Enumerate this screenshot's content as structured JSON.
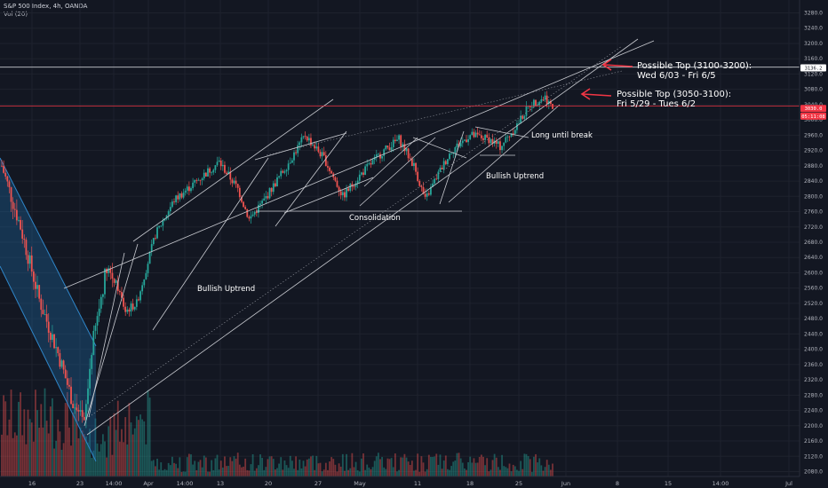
{
  "header": {
    "symbol_line": "S&P 500 Index, 4h, OANDA",
    "volume_line": "Vol (20)"
  },
  "colors": {
    "background": "#131722",
    "up_candle": "#26a69a",
    "down_candle": "#ef5350",
    "annotation": "#ffffff",
    "arrow": "#f23645",
    "downtrend_channel_fill": "#1e6aa6"
  },
  "chart_data": {
    "type": "candlestick",
    "y_axis": {
      "min": 2080,
      "max": 3280,
      "tick_labels": [
        "3280.0",
        "3240.0",
        "3200.0",
        "3160.0",
        "3120.0",
        "3080.0",
        "3040.0",
        "3000.0",
        "2960.0",
        "2920.0",
        "2880.0",
        "2840.0",
        "2800.0",
        "2760.0",
        "2720.0",
        "2680.0",
        "2640.0",
        "2600.0",
        "2560.0",
        "2520.0",
        "2480.0",
        "2440.0",
        "2400.0",
        "2360.0",
        "2320.0",
        "2280.0",
        "2240.0",
        "2200.0",
        "2160.0",
        "2120.0",
        "2080.0"
      ],
      "price_tags": [
        {
          "label": "3136.2",
          "value": 3136.2,
          "color": "#d1d4dc"
        },
        {
          "label": "3030.0",
          "value": 3030.0,
          "color": "#f23645"
        },
        {
          "label": "05:11:08",
          "value": 3010.0,
          "color": "#f23645"
        }
      ]
    },
    "x_axis": {
      "tick_labels": [
        "16",
        "23",
        "14:00",
        "Apr",
        "14:00",
        "13",
        "20",
        "27",
        "May",
        "11",
        "18",
        "25",
        "Jun",
        "8",
        "15",
        "14:00",
        "Jul"
      ]
    },
    "price_path_waypoints": [
      {
        "t": 0,
        "price": 2880
      },
      {
        "t": 10,
        "price": 2720
      },
      {
        "t": 20,
        "price": 2530
      },
      {
        "t": 30,
        "price": 2390
      },
      {
        "t": 38,
        "price": 2260
      },
      {
        "t": 44,
        "price": 2200
      },
      {
        "t": 48,
        "price": 2400
      },
      {
        "t": 56,
        "price": 2620
      },
      {
        "t": 62,
        "price": 2560
      },
      {
        "t": 66,
        "price": 2500
      },
      {
        "t": 72,
        "price": 2520
      },
      {
        "t": 82,
        "price": 2700
      },
      {
        "t": 92,
        "price": 2790
      },
      {
        "t": 104,
        "price": 2840
      },
      {
        "t": 116,
        "price": 2890
      },
      {
        "t": 126,
        "price": 2820
      },
      {
        "t": 132,
        "price": 2740
      },
      {
        "t": 140,
        "price": 2790
      },
      {
        "t": 152,
        "price": 2880
      },
      {
        "t": 162,
        "price": 2960
      },
      {
        "t": 172,
        "price": 2900
      },
      {
        "t": 182,
        "price": 2800
      },
      {
        "t": 192,
        "price": 2860
      },
      {
        "t": 204,
        "price": 2920
      },
      {
        "t": 212,
        "price": 2950
      },
      {
        "t": 220,
        "price": 2880
      },
      {
        "t": 226,
        "price": 2790
      },
      {
        "t": 232,
        "price": 2850
      },
      {
        "t": 240,
        "price": 2920
      },
      {
        "t": 250,
        "price": 2960
      },
      {
        "t": 260,
        "price": 2950
      },
      {
        "t": 266,
        "price": 2930
      },
      {
        "t": 274,
        "price": 2980
      },
      {
        "t": 282,
        "price": 3040
      },
      {
        "t": 290,
        "price": 3060
      },
      {
        "t": 294,
        "price": 3030
      }
    ],
    "annotations": [
      {
        "text": "Bullish Uptrend",
        "near": "first uptrend"
      },
      {
        "text": "Consolidation",
        "near": "May range"
      },
      {
        "text": "Bullish Uptrend",
        "near": "late May"
      },
      {
        "text": "Long until break",
        "near": "channel"
      }
    ],
    "targets": [
      {
        "lines": [
          "Possible Top (3100-3200):",
          "Wed 6/03 - Fri 6/5"
        ]
      },
      {
        "lines": [
          "Possible Top (3050-3100):",
          "Fri 5/29 - Tues 6/2"
        ]
      }
    ]
  }
}
